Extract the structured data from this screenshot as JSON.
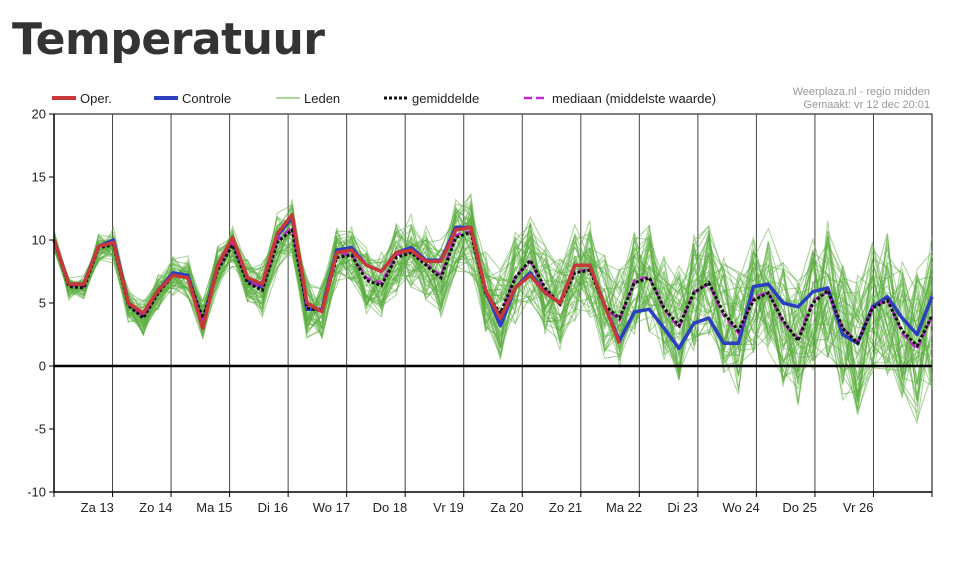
{
  "page": {
    "title": "Temperatuur"
  },
  "credits": {
    "line1": "Weerplaza.nl - regio midden",
    "line2": "Gemaakt: vr 12 dec 20:01"
  },
  "colors": {
    "oper": "#c8373a",
    "controle": "#2b3fbf",
    "leden": "#5aad3e",
    "gemiddelde": "#111111",
    "mediaan": "#c02ad0",
    "grid": "#000000",
    "zero": "#000000"
  },
  "chart_data": {
    "type": "line",
    "title": "Temperatuur",
    "xlabel": "",
    "ylabel": "",
    "ylim": [
      -10,
      20
    ],
    "yticks": [
      20,
      15,
      10,
      5,
      0,
      -5,
      -10
    ],
    "x_steps": 60,
    "day_labels": [
      "Za 13",
      "Zo 14",
      "Ma 15",
      "Di 16",
      "Wo 17",
      "Do 18",
      "Vr 19",
      "Za 20",
      "Zo 21",
      "Ma 22",
      "Di 23",
      "Wo 24",
      "Do 25",
      "Vr 26"
    ],
    "legend": [
      {
        "key": "oper",
        "label": "Oper."
      },
      {
        "key": "controle",
        "label": "Controle"
      },
      {
        "key": "leden",
        "label": "Leden"
      },
      {
        "key": "gemiddelde",
        "label": "gemiddelde"
      },
      {
        "key": "mediaan",
        "label": "mediaan (middelste waarde)"
      }
    ],
    "series": [
      {
        "name": "Oper.",
        "values": [
          10.0,
          6.5,
          6.5,
          9.5,
          9.8,
          5.0,
          4.2,
          6.0,
          7.2,
          7.0,
          3.0,
          8.0,
          10.2,
          7.0,
          6.5,
          10.5,
          12.0,
          5.0,
          4.3,
          9.0,
          9.2,
          8.0,
          7.5,
          9.0,
          9.2,
          8.3,
          8.3,
          10.8,
          11.0,
          6.0,
          3.8,
          6.2,
          7.2,
          5.8,
          5.0,
          8.0,
          8.0,
          4.8,
          1.8
        ]
      },
      {
        "name": "Controle",
        "values": [
          10.0,
          6.5,
          6.5,
          9.5,
          10.0,
          5.0,
          4.0,
          6.0,
          7.4,
          7.2,
          3.4,
          8.0,
          10.0,
          6.8,
          6.3,
          10.3,
          11.8,
          4.5,
          4.5,
          9.2,
          9.4,
          8.0,
          7.5,
          9.0,
          9.4,
          8.4,
          8.4,
          11.0,
          11.0,
          6.0,
          3.2,
          6.2,
          7.4,
          5.8,
          5.0,
          8.0,
          8.0,
          4.8,
          2.0,
          4.3,
          4.5,
          3.0,
          1.4,
          3.4,
          3.8,
          1.8,
          1.8,
          6.3,
          6.5,
          5.0,
          4.7,
          5.9,
          6.2,
          2.5,
          1.8,
          4.7,
          5.5,
          3.8,
          2.5,
          5.5
        ]
      },
      {
        "name": "gemiddelde",
        "values": [
          10.0,
          6.3,
          6.2,
          9.4,
          9.6,
          4.8,
          3.8,
          5.8,
          7.2,
          7.0,
          3.8,
          7.6,
          9.6,
          6.6,
          6.0,
          9.8,
          10.8,
          4.6,
          4.4,
          8.6,
          8.8,
          6.8,
          6.4,
          8.6,
          9.0,
          8.0,
          7.0,
          10.2,
          10.6,
          5.8,
          4.2,
          7.0,
          8.4,
          6.2,
          4.9,
          7.4,
          7.6,
          4.8,
          3.8,
          6.6,
          7.0,
          4.6,
          3.2,
          5.8,
          6.6,
          4.2,
          2.8,
          5.2,
          5.8,
          3.6,
          2.0,
          5.0,
          6.0,
          3.0,
          1.8,
          4.6,
          5.2,
          2.8,
          1.6,
          4.0
        ]
      },
      {
        "name": "mediaan",
        "values": [
          10.0,
          6.4,
          6.3,
          9.5,
          9.7,
          4.9,
          3.9,
          5.9,
          7.2,
          7.0,
          3.6,
          7.8,
          9.8,
          6.7,
          6.2,
          10.0,
          11.0,
          4.7,
          4.4,
          8.8,
          8.9,
          7.0,
          6.6,
          8.8,
          9.1,
          8.1,
          7.2,
          10.4,
          10.7,
          5.9,
          4.0,
          7.1,
          8.3,
          6.1,
          4.9,
          7.5,
          7.7,
          4.7,
          3.6,
          6.8,
          7.1,
          4.5,
          3.0,
          5.9,
          6.5,
          4.0,
          2.6,
          5.4,
          5.9,
          3.4,
          2.2,
          5.2,
          5.9,
          3.0,
          1.9,
          4.6,
          5.3,
          2.6,
          1.3,
          4.0
        ]
      }
    ],
    "members": {
      "count": 50,
      "seed": 7
    }
  }
}
